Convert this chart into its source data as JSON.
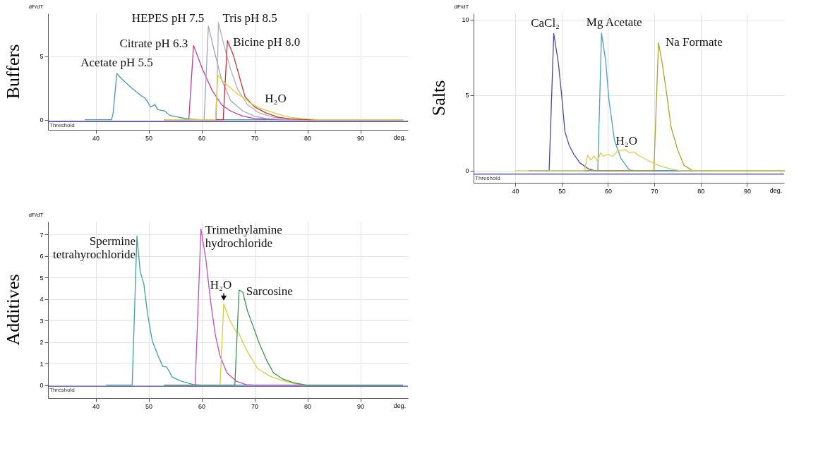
{
  "chart_data": [
    {
      "type": "line",
      "title": "Buffers",
      "ylabel": "dF/dT",
      "xlabel": "deg.",
      "xlim": [
        31,
        99
      ],
      "ylim": [
        -0.8,
        8.4
      ],
      "xticks": [
        40,
        50,
        60,
        70,
        80,
        90
      ],
      "yticks": [
        0,
        5
      ],
      "grid": true,
      "series": [
        {
          "name": "Acetate pH 5.5",
          "color": "#4a94b8",
          "x": [
            38,
            43,
            43.3,
            44,
            45,
            46.8,
            48.6,
            49.2,
            49.7,
            50.4,
            51.2,
            51.7,
            53,
            54,
            55.7,
            57.5,
            60,
            98
          ],
          "values": [
            0,
            0,
            0.5,
            3.65,
            3.2,
            2.5,
            1.9,
            1.75,
            1.5,
            1.0,
            1.2,
            0.8,
            0.7,
            0.35,
            0.2,
            0.05,
            0,
            0
          ]
        },
        {
          "name": "Citrate pH 6.3",
          "color": "#c03c9c",
          "x": [
            53,
            57.6,
            58.5,
            60.2,
            62,
            63.8,
            65.5,
            67.8,
            70,
            75,
            98
          ],
          "values": [
            0,
            0,
            5.87,
            3.98,
            2.33,
            1.18,
            0.69,
            0.28,
            0.1,
            0,
            0
          ]
        },
        {
          "name": "HEPES pH 7.5",
          "color": "#a8a0c0",
          "x": [
            53,
            60.5,
            61.3,
            62.4,
            63.8,
            65.5,
            67.8,
            70,
            72.2,
            76,
            98
          ],
          "values": [
            0,
            0,
            7.4,
            5.46,
            3.16,
            1.51,
            0.69,
            0.28,
            0.1,
            0,
            0
          ]
        },
        {
          "name": "Tris pH 8.5",
          "color": "#b4acbc",
          "x": [
            53,
            62.8,
            63.2,
            64.2,
            65.5,
            66.9,
            68.7,
            70.9,
            73.6,
            78,
            98
          ],
          "values": [
            0,
            0,
            7.68,
            5.95,
            3.98,
            2.34,
            1.18,
            0.53,
            0.2,
            0,
            0
          ]
        },
        {
          "name": "Bicine pH 8.0",
          "color": "#c83040",
          "x": [
            53,
            64.1,
            64.9,
            66,
            67.1,
            68.2,
            70,
            72.2,
            74.5,
            76.7,
            80,
            98
          ],
          "values": [
            0,
            0,
            6.25,
            5.13,
            3.49,
            1.84,
            1.02,
            0.53,
            0.2,
            0.07,
            0,
            0
          ]
        },
        {
          "name": "H₂O",
          "color": "#d8d040",
          "x": [
            53,
            62.6,
            63.1,
            64.2,
            65.5,
            66.9,
            68.2,
            69.1,
            70.9,
            72.7,
            74.5,
            76.7,
            79,
            82,
            98
          ],
          "values": [
            0,
            0,
            3.49,
            3.0,
            2.5,
            2.0,
            1.68,
            1.35,
            0.94,
            0.69,
            0.44,
            0.2,
            0.1,
            0,
            0
          ]
        }
      ],
      "ref_lines": [
        {
          "axis": "y",
          "value": -0.15,
          "label": "Threshold",
          "color": "#3030a0"
        }
      ]
    },
    {
      "type": "line",
      "title": "Salts",
      "ylabel": "dF/dT",
      "xlabel": "deg.",
      "xlim": [
        31,
        98
      ],
      "ylim": [
        -0.8,
        10.4
      ],
      "xticks": [
        40,
        50,
        60,
        70,
        80,
        90
      ],
      "yticks": [
        0,
        5,
        10
      ],
      "grid": true,
      "series": [
        {
          "name": "CaCl₂",
          "color": "#4848a0",
          "x": [
            43,
            47.3,
            48.3,
            49.3,
            50,
            50.7,
            51.6,
            52.6,
            54,
            55.8,
            57.2,
            98
          ],
          "values": [
            0,
            0,
            9.07,
            7.11,
            5.0,
            2.6,
            1.7,
            1.1,
            0.5,
            0.12,
            0,
            0
          ]
        },
        {
          "name": "Mg Acetate",
          "color": "#4aa0c8",
          "x": [
            43,
            57.8,
            58.6,
            59.5,
            60.2,
            61.4,
            62.8,
            64.6,
            66,
            98
          ],
          "values": [
            0,
            0,
            9.1,
            7.26,
            4.7,
            2.0,
            0.8,
            0.05,
            0,
            0
          ]
        },
        {
          "name": "Na Formate",
          "color": "#b0a030",
          "x": [
            55,
            69.9,
            70.9,
            71.7,
            72.7,
            73.6,
            75,
            76.4,
            78.3,
            98
          ],
          "values": [
            0,
            0,
            8.47,
            7.11,
            5.0,
            2.9,
            1.4,
            0.35,
            0,
            0
          ]
        },
        {
          "name": "H₂O",
          "color": "#d8d050",
          "x": [
            40,
            54.9,
            55.6,
            56.3,
            57,
            57.7,
            58.4,
            59.1,
            60,
            61,
            61.9,
            63.7,
            64.7,
            65.6,
            66.5,
            67.9,
            69.8,
            71.6,
            74,
            75.8,
            98
          ],
          "values": [
            0,
            0,
            1.02,
            0.72,
            0.95,
            0.65,
            1.17,
            0.95,
            1.1,
            0.95,
            1.25,
            1.4,
            1.17,
            1.25,
            1.02,
            0.8,
            0.5,
            0.27,
            0.08,
            0,
            0
          ]
        }
      ],
      "ref_lines": [
        {
          "axis": "y",
          "value": -0.22,
          "label": "Threshold",
          "color": "#3030a0"
        }
      ]
    },
    {
      "type": "line",
      "title": "Additives",
      "ylabel": "dF/dT",
      "xlabel": "deg.",
      "xlim": [
        31,
        99
      ],
      "ylim": [
        -0.6,
        7.6
      ],
      "xticks": [
        40,
        50,
        60,
        70,
        80,
        90
      ],
      "yticks": [
        0,
        1,
        2,
        3,
        4,
        5,
        6,
        7
      ],
      "grid": true,
      "series": [
        {
          "name": "Spermine\ntetrahyrochloride",
          "color": "#40a0a0",
          "x": [
            42,
            46.9,
            47.8,
            48.4,
            49.1,
            49.8,
            50.7,
            51.8,
            52.7,
            53.4,
            54.5,
            56.2,
            58.5,
            60,
            98
          ],
          "values": [
            0,
            0,
            6.93,
            5.3,
            4.71,
            3.33,
            2.05,
            1.36,
            0.87,
            0.85,
            0.37,
            0.18,
            0.03,
            0,
            0
          ]
        },
        {
          "name": "Trimethylamine\nhydrochloride",
          "color": "#c050c0",
          "x": [
            53,
            58.8,
            59.9,
            60.8,
            61.7,
            62.6,
            63.5,
            64.8,
            66.6,
            68.4,
            70,
            98
          ],
          "values": [
            0,
            0,
            7.26,
            5.9,
            3.93,
            2.35,
            1.36,
            0.57,
            0.18,
            0.03,
            0,
            0
          ]
        },
        {
          "name": "H₂O",
          "color": "#d0d040",
          "x": [
            53,
            63.5,
            64.2,
            65.3,
            66.4,
            67.1,
            67.5,
            68.9,
            70.6,
            72.9,
            75.1,
            77.4,
            79.6,
            98
          ],
          "values": [
            0,
            0,
            3.78,
            3.04,
            2.54,
            2.4,
            2.15,
            1.46,
            0.77,
            0.42,
            0.23,
            0.08,
            0,
            0
          ]
        },
        {
          "name": "Sarcosine",
          "color": "#409050",
          "x": [
            53,
            66.3,
            67.1,
            67.8,
            68.7,
            69.6,
            70.9,
            72.3,
            73.6,
            75.4,
            77.6,
            79.9,
            98
          ],
          "values": [
            0,
            0,
            4.42,
            4.32,
            3.43,
            2.84,
            1.95,
            1.16,
            0.57,
            0.28,
            0.1,
            0,
            0
          ]
        }
      ],
      "ref_lines": [
        {
          "axis": "y",
          "value": -0.05,
          "label": "Threshold",
          "color": "#3030a0"
        }
      ]
    }
  ]
}
